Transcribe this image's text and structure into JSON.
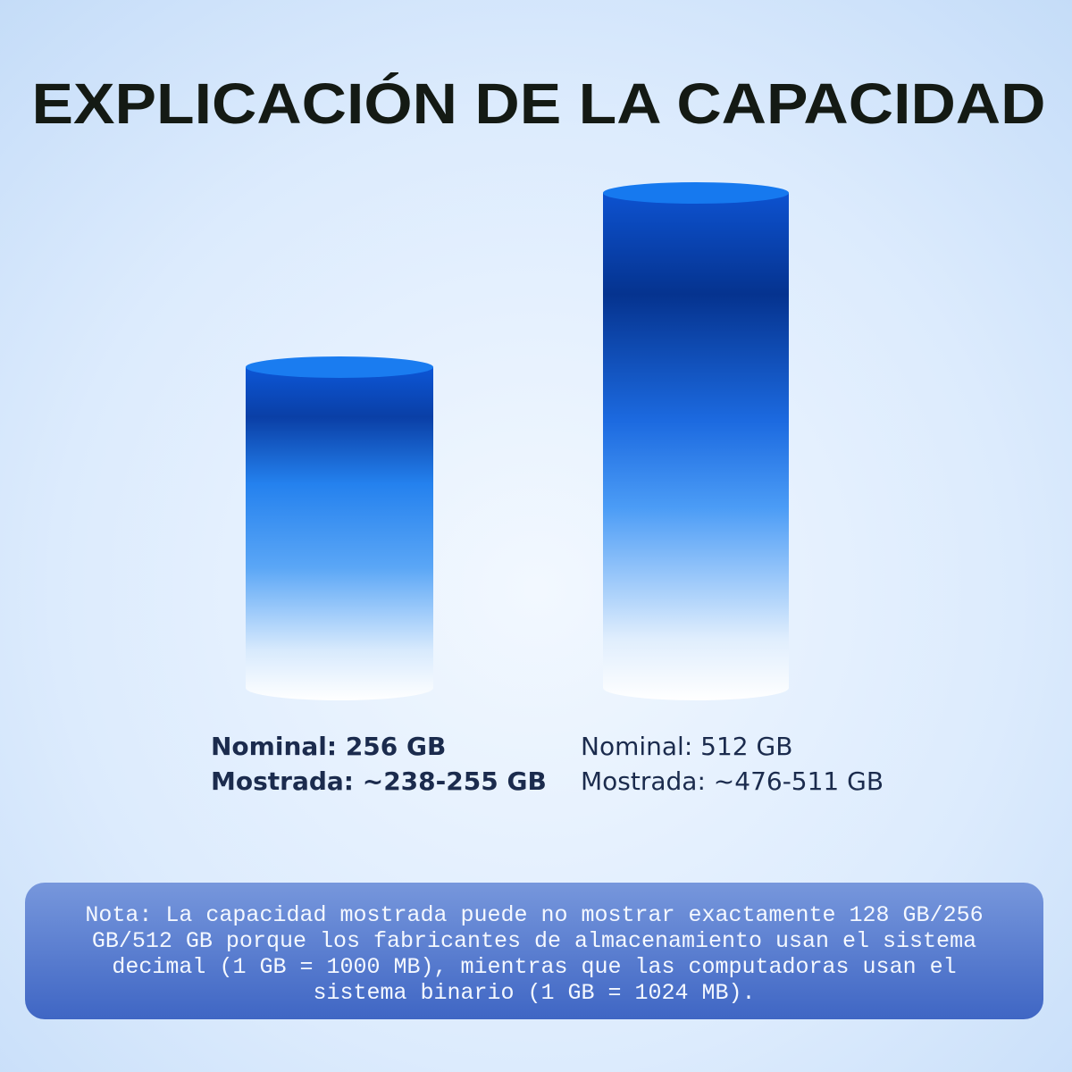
{
  "header": {
    "title": "EXPLICACIÓN DE LA CAPACIDAD"
  },
  "items": [
    {
      "nominal": "Nominal: 256 GB",
      "shown": "Mostrada: ~238-255 GB"
    },
    {
      "nominal": "Nominal: 512 GB",
      "shown": "Mostrada: ~476-511 GB"
    }
  ],
  "note": {
    "lines": [
      "Nota: La capacidad mostrada puede no mostrar exactamente 128 GB/256",
      "GB/512 GB porque los fabricantes de almacenamiento usan el sistema",
      "decimal (1 GB = 1000 MB), mientras que las computadoras usan el",
      "sistema binario (1 GB = 1024 MB)."
    ]
  }
}
